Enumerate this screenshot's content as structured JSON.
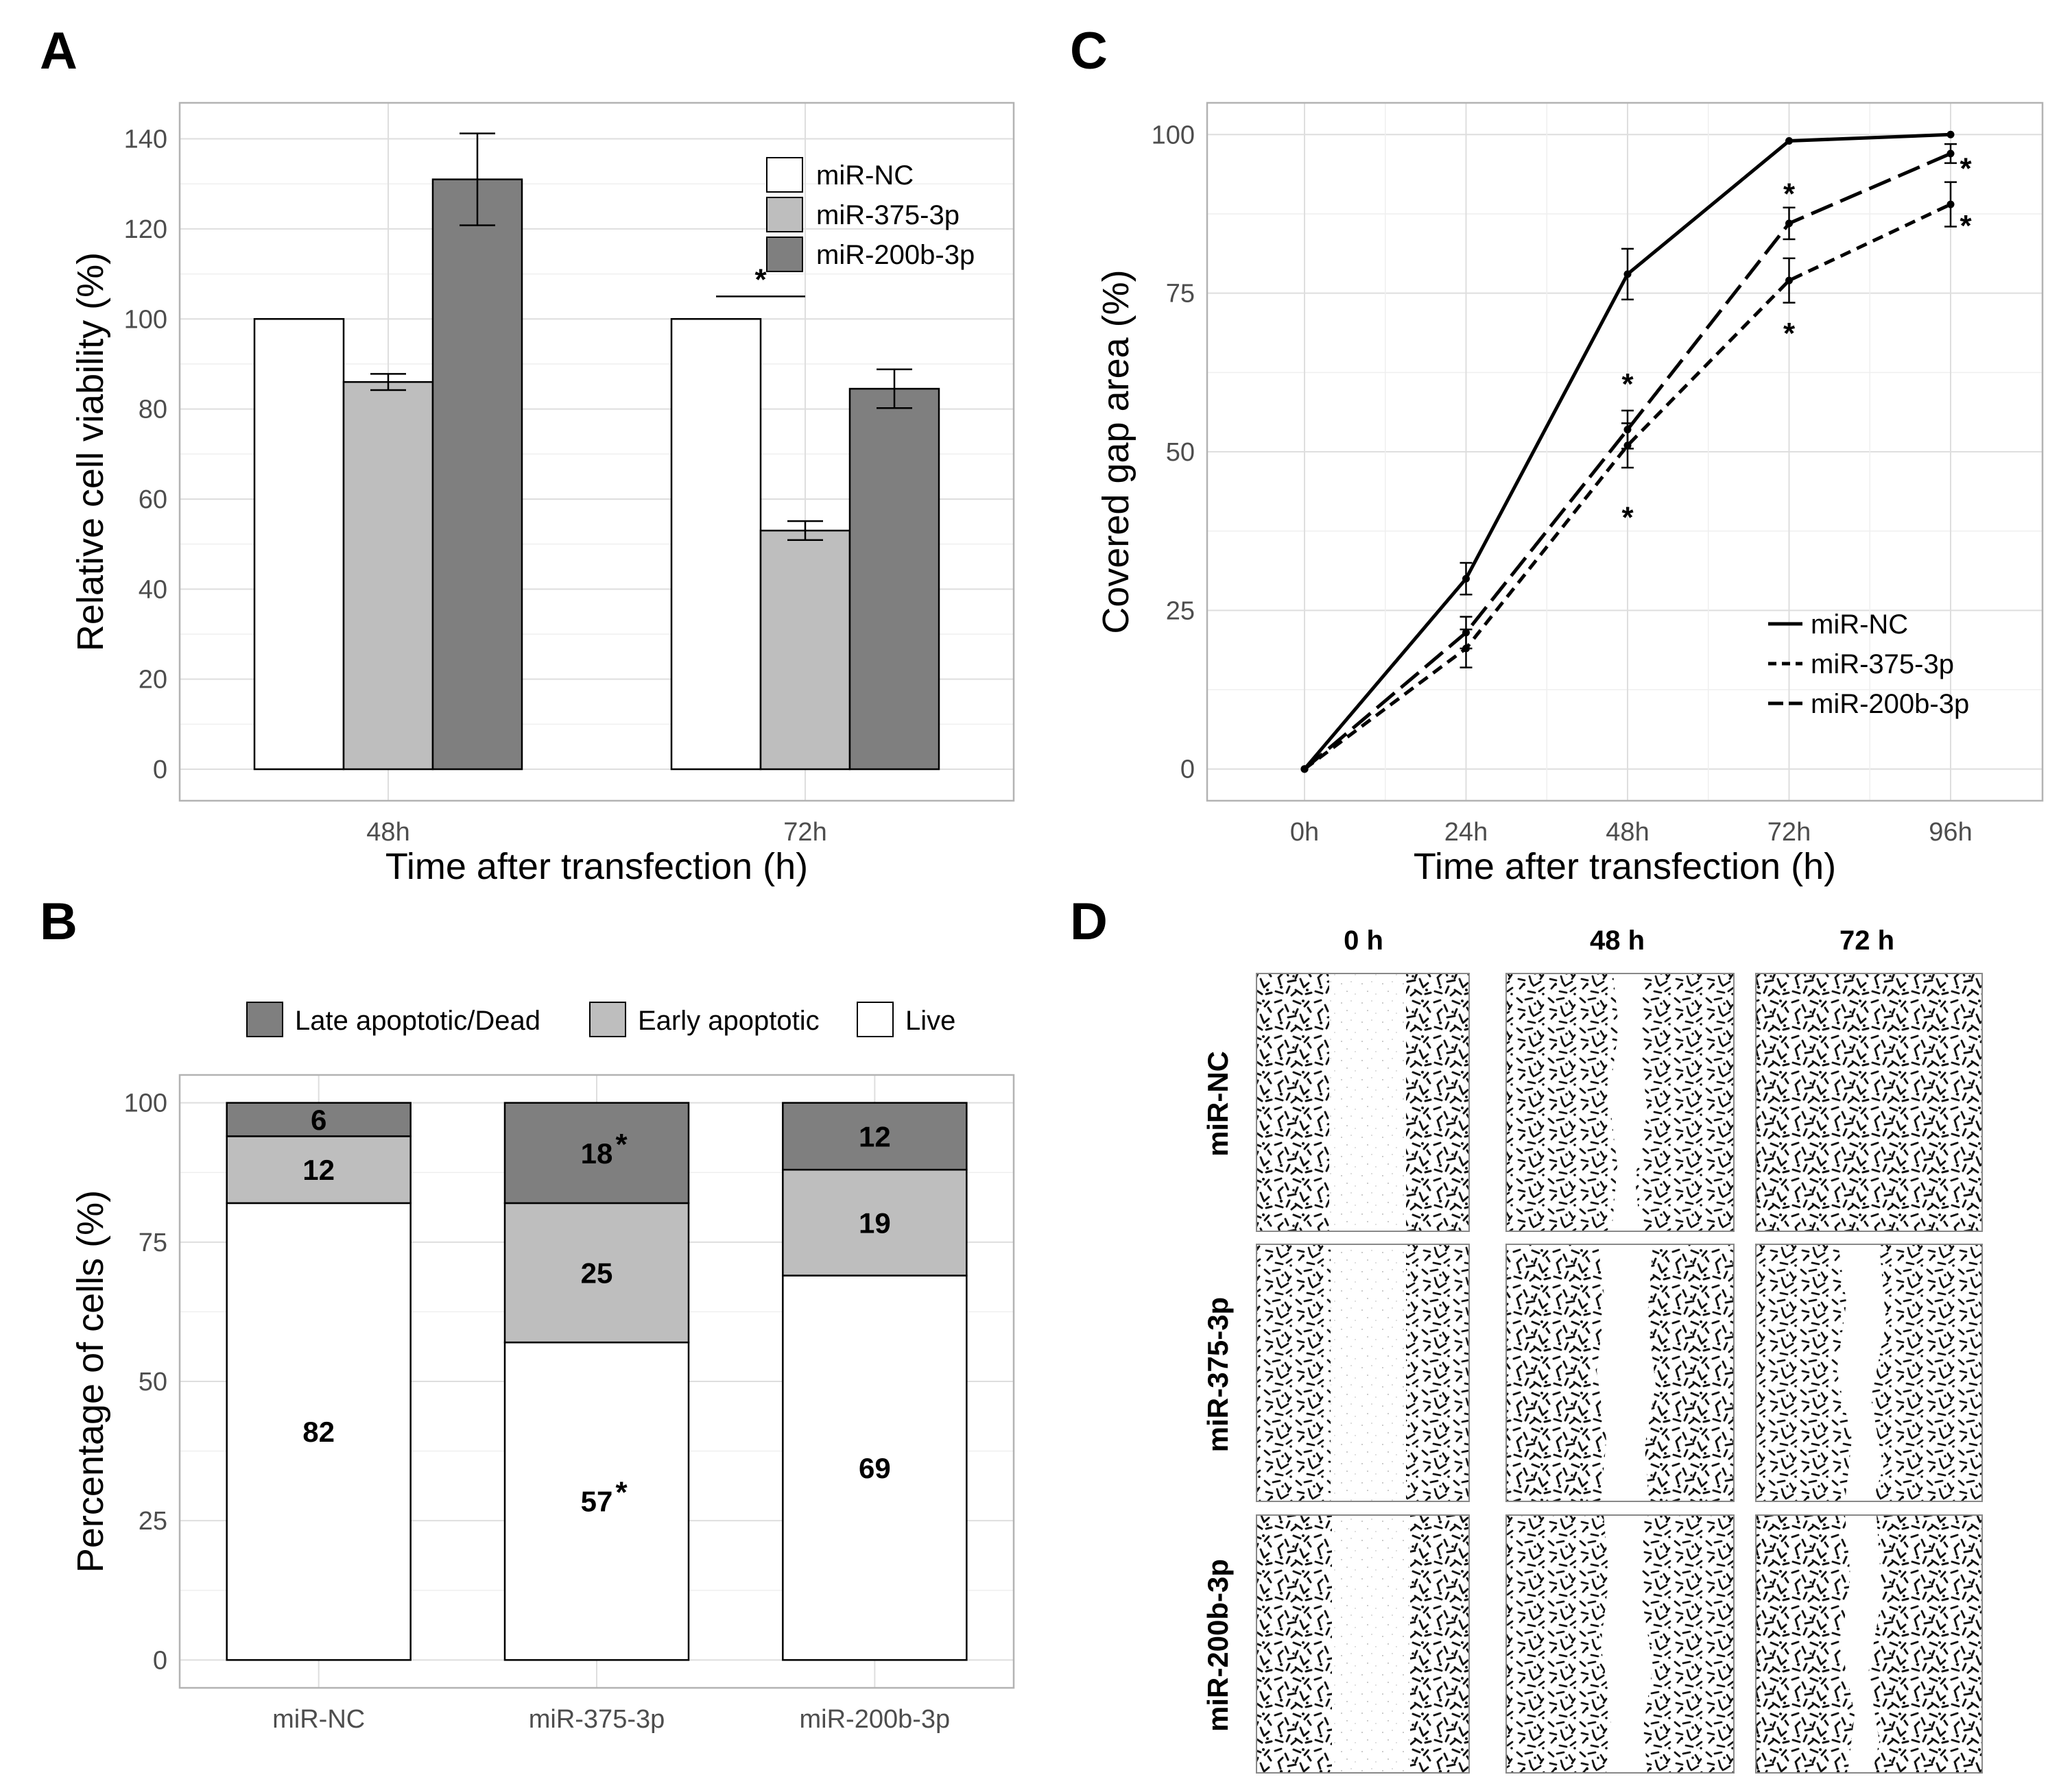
{
  "panels": {
    "A": "A",
    "B": "B",
    "C": "C",
    "D": "D"
  },
  "colors": {
    "miR-NC": "#ffffff",
    "miR-375-3p": "#bebebe",
    "miR-200b-3p": "#7f7f7f",
    "live": "#ffffff",
    "early": "#bebebe",
    "late": "#7f7f7f"
  },
  "chart_data": [
    {
      "panel": "A",
      "type": "bar",
      "title": "",
      "xlabel": "Time after transfection (h)",
      "ylabel": "Relative cell viability (%)",
      "categories": [
        "48h",
        "72h"
      ],
      "ylim": [
        -7,
        148
      ],
      "yticks": [
        0,
        20,
        40,
        60,
        80,
        100,
        120,
        140
      ],
      "legend_position": "top-right",
      "series": [
        {
          "name": "miR-NC",
          "values": [
            100,
            100
          ],
          "errors": [
            0,
            0
          ]
        },
        {
          "name": "miR-375-3p",
          "values": [
            86,
            53
          ],
          "errors": [
            1.8,
            2.1
          ]
        },
        {
          "name": "miR-200b-3p",
          "values": [
            131,
            84.5
          ],
          "errors": [
            10.2,
            4.3
          ]
        }
      ],
      "annotations": [
        {
          "text": "*",
          "category": "72h",
          "bracket": [
            "miR-NC",
            "miR-375-3p"
          ],
          "y": 105
        }
      ]
    },
    {
      "panel": "B",
      "type": "bar",
      "stacked": true,
      "title": "",
      "xlabel": "",
      "ylabel": "Percentage of cells (%)",
      "categories": [
        "miR-NC",
        "miR-375-3p",
        "miR-200b-3p"
      ],
      "ylim": [
        -5,
        105
      ],
      "yticks": [
        0,
        25,
        50,
        75,
        100
      ],
      "legend_position": "top",
      "legend_order": [
        "Late apoptotic/Dead",
        "Early apoptotic",
        "Live"
      ],
      "series": [
        {
          "name": "Live",
          "values": [
            82,
            57,
            69
          ],
          "labels": [
            "82",
            "57",
            "69"
          ]
        },
        {
          "name": "Early apoptotic",
          "values": [
            12,
            25,
            19
          ],
          "labels": [
            "12",
            "25",
            "19"
          ]
        },
        {
          "name": "Late apoptotic/Dead",
          "values": [
            6,
            18,
            12
          ],
          "labels": [
            "6",
            "18",
            "12"
          ]
        }
      ],
      "annotations": [
        {
          "text": "*",
          "category": "miR-375-3p",
          "series": "Late apoptotic/Dead"
        },
        {
          "text": "*",
          "category": "miR-375-3p",
          "series": "Live"
        }
      ]
    },
    {
      "panel": "C",
      "type": "line",
      "title": "",
      "xlabel": "Time after transfection (h)",
      "ylabel": "Covered gap area (%)",
      "x": [
        "0h",
        "24h",
        "48h",
        "72h",
        "96h"
      ],
      "ylim": [
        -5,
        105
      ],
      "yticks": [
        0,
        25,
        50,
        75,
        100
      ],
      "legend_position": "bottom-right",
      "series": [
        {
          "name": "miR-NC",
          "dash": "solid",
          "values": [
            0,
            30,
            78,
            99,
            100
          ],
          "errors": [
            0,
            2.5,
            4,
            0,
            0
          ]
        },
        {
          "name": "miR-375-3p",
          "dash": "dotted",
          "values": [
            0,
            19,
            51,
            77,
            89
          ],
          "errors": [
            0,
            3,
            3.5,
            3.5,
            3.5
          ]
        },
        {
          "name": "miR-200b-3p",
          "dash": "dashed",
          "values": [
            0,
            21.5,
            53.5,
            86,
            97
          ],
          "errors": [
            0,
            2.5,
            3,
            2.5,
            1.5
          ]
        }
      ],
      "annotations": [
        {
          "text": "*",
          "x": "48h",
          "y": 61
        },
        {
          "text": "*",
          "x": "48h",
          "y": 40
        },
        {
          "text": "*",
          "x": "72h",
          "y": 91
        },
        {
          "text": "*",
          "x": "72h",
          "y": 69
        },
        {
          "text": "*",
          "x": "96h",
          "y": 95
        },
        {
          "text": "*",
          "x": "96h",
          "y": 86
        }
      ]
    }
  ],
  "panel_d": {
    "columns": [
      "0 h",
      "48 h",
      "72 h"
    ],
    "rows": [
      "miR-NC",
      "miR-375-3p",
      "miR-200b-3p"
    ]
  }
}
